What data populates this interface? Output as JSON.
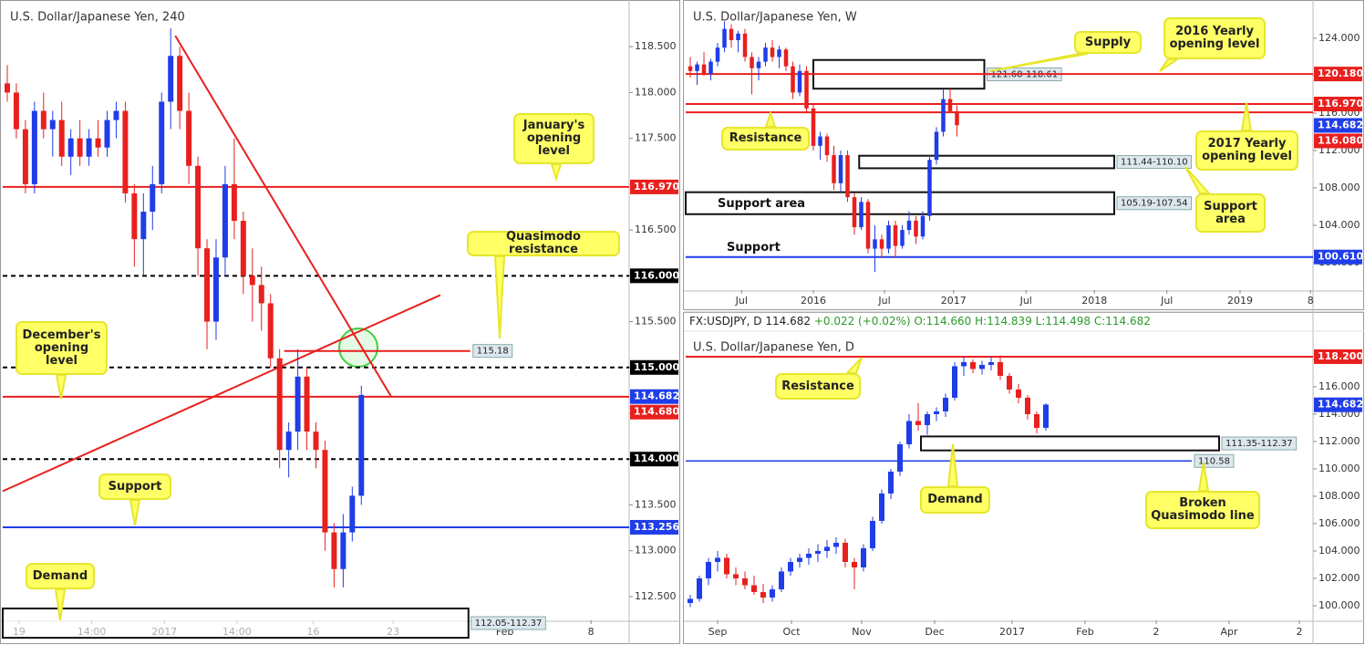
{
  "chart_data": [
    {
      "type": "candlestick",
      "title": "U.S. Dollar/Japanese Yen, 240",
      "up_color": "#1f3de8",
      "down_color": "#e8201e",
      "open": [
        118.1,
        118.0,
        117.6,
        117.0,
        117.8,
        117.6,
        117.7,
        117.3,
        117.5,
        117.3,
        117.5,
        117.4,
        117.7,
        117.8,
        116.9,
        116.4,
        116.7,
        117.0,
        117.9,
        118.4,
        117.8,
        117.2,
        116.3,
        115.5,
        116.2,
        117.0,
        116.6,
        116.0,
        115.9,
        115.7,
        115.1,
        114.1,
        114.3,
        114.9,
        114.3,
        114.1,
        113.2,
        112.8,
        113.2,
        113.6
      ],
      "high": [
        118.3,
        118.1,
        117.7,
        117.9,
        118.0,
        117.8,
        117.9,
        117.6,
        117.7,
        117.6,
        117.7,
        117.8,
        117.9,
        117.9,
        117.0,
        116.9,
        117.2,
        118.0,
        118.7,
        118.5,
        118.0,
        117.3,
        116.4,
        116.4,
        117.2,
        117.5,
        116.7,
        116.3,
        116.1,
        115.8,
        115.2,
        114.4,
        115.2,
        115.0,
        114.4,
        114.2,
        113.3,
        113.4,
        113.7,
        114.8
      ],
      "low": [
        117.9,
        117.5,
        116.9,
        116.9,
        117.5,
        117.3,
        117.2,
        117.1,
        117.2,
        117.2,
        117.3,
        117.3,
        117.5,
        116.8,
        116.1,
        116.0,
        116.5,
        116.9,
        117.6,
        117.6,
        117.0,
        116.0,
        115.2,
        115.3,
        116.0,
        116.4,
        115.8,
        115.5,
        115.4,
        115.0,
        113.9,
        113.8,
        114.1,
        114.1,
        113.9,
        113.0,
        112.6,
        112.6,
        113.1,
        113.5
      ],
      "close": [
        118.0,
        117.6,
        117.0,
        117.8,
        117.6,
        117.7,
        117.3,
        117.5,
        117.3,
        117.5,
        117.4,
        117.7,
        117.8,
        116.9,
        116.4,
        116.7,
        117.0,
        117.9,
        118.4,
        117.8,
        117.2,
        116.3,
        115.5,
        116.2,
        117.0,
        116.6,
        116.0,
        115.9,
        115.7,
        115.1,
        114.1,
        114.3,
        114.9,
        114.3,
        114.1,
        113.2,
        112.8,
        113.2,
        113.6,
        114.7
      ],
      "xlim": [
        -0.5,
        68.5
      ],
      "xticks": [
        {
          "value": 1.3,
          "label": "19"
        },
        {
          "value": 9.3,
          "label": "14:00"
        },
        {
          "value": 17.3,
          "label": "2017"
        },
        {
          "value": 25.3,
          "label": "14:00"
        },
        {
          "value": 33.7,
          "label": "16"
        },
        {
          "value": 42.5,
          "label": "23"
        },
        {
          "value": 54.8,
          "label": "Feb"
        },
        {
          "value": 64.3,
          "label": "8"
        }
      ],
      "ylim": [
        112.24,
        118.98
      ],
      "yticks": [
        {
          "value": 112.5,
          "label": "112.500"
        },
        {
          "value": 113,
          "label": "113.000"
        },
        {
          "value": 113.5,
          "label": "113.500"
        },
        {
          "value": 114,
          "label": "114.000"
        },
        {
          "value": 114.5,
          "label": "114.500"
        },
        {
          "value": 115,
          "label": "115.000"
        },
        {
          "value": 115.5,
          "label": "115.500"
        },
        {
          "value": 116,
          "label": "116.000"
        },
        {
          "value": 116.5,
          "label": "116.500"
        },
        {
          "value": 117,
          "label": "117.000"
        },
        {
          "value": 117.5,
          "label": "117.500"
        },
        {
          "value": 118,
          "label": "118.000"
        },
        {
          "value": 118.5,
          "label": "118.500"
        }
      ],
      "last_price": {
        "value": 114.682,
        "label": "114.682",
        "color": "#1f3de8"
      },
      "levels": [
        {
          "value": 116.97,
          "label": "116.970",
          "color": "#e8201e",
          "style": "solid"
        },
        {
          "value": 116,
          "label": "116.000",
          "color": "#000000",
          "style": "dashed"
        },
        {
          "value": 115,
          "label": "115.000",
          "color": "#000000",
          "style": "dashed"
        },
        {
          "value": 114.68,
          "label": "114.680",
          "color": "#e8201e",
          "style": "solid"
        },
        {
          "value": 114,
          "label": "114.000",
          "color": "#000000",
          "style": "dashed"
        },
        {
          "value": 113.256,
          "label": "113.256",
          "color": "#1f3de8",
          "style": "solid"
        }
      ],
      "segments": [
        {
          "x": [
            30.5,
            51
          ],
          "value": 115.18,
          "color": "#e8201e"
        }
      ],
      "trendlines": [
        {
          "x": [
            18.5,
            42.3
          ],
          "y": [
            118.62,
            114.68
          ],
          "color": "#e8201e"
        },
        {
          "x": [
            -0.5,
            47.7
          ],
          "y": [
            113.65,
            115.79
          ],
          "color": "#e8201e"
        }
      ],
      "zones": [
        {
          "x": [
            -0.5,
            50.8
          ],
          "low": 112.05,
          "high": 112.37,
          "label": "112.05-112.37"
        }
      ],
      "annotations": [
        "January's opening level",
        "Quasimodo resistance",
        "December's opening level",
        "Support",
        "Demand"
      ],
      "labels": []
    },
    {
      "type": "candlestick",
      "title": "U.S. Dollar/Japanese Yen, W",
      "up_color": "#1f3de8",
      "down_color": "#e8201e",
      "open": [
        121.0,
        120.5,
        121.2,
        120.2,
        121.5,
        123.0,
        125.0,
        123.8,
        124.5,
        122.0,
        120.8,
        121.5,
        123.0,
        122.0,
        122.8,
        121.0,
        118.2,
        120.5,
        116.5,
        112.5,
        113.5,
        111.5,
        108.5,
        111.5,
        107.0,
        103.8,
        106.5,
        101.5,
        102.5,
        101.5,
        104.0,
        101.8,
        103.5,
        104.5,
        102.8,
        105.0,
        111.0,
        114.0,
        117.5,
        116.2
      ],
      "high": [
        122.0,
        121.5,
        122.5,
        121.8,
        123.5,
        125.8,
        125.5,
        124.8,
        125.0,
        122.5,
        122.0,
        123.5,
        123.8,
        123.2,
        123.0,
        121.5,
        121.2,
        121.0,
        117.0,
        114.0,
        113.8,
        112.5,
        112.0,
        112.0,
        107.5,
        107.0,
        106.8,
        104.0,
        103.0,
        104.5,
        104.5,
        104.0,
        105.5,
        105.0,
        105.5,
        111.5,
        114.5,
        118.5,
        118.6,
        116.8
      ],
      "low": [
        119.8,
        119.0,
        120.0,
        119.5,
        121.0,
        122.5,
        123.0,
        122.5,
        121.5,
        118.0,
        119.5,
        121.0,
        121.5,
        120.8,
        120.5,
        117.5,
        117.8,
        116.0,
        112.0,
        111.0,
        110.8,
        107.8,
        107.5,
        106.5,
        103.0,
        103.5,
        101.0,
        99.0,
        100.5,
        101.0,
        100.5,
        101.5,
        103.0,
        102.0,
        102.5,
        104.5,
        110.5,
        113.5,
        116.0,
        113.5
      ],
      "close": [
        120.5,
        121.2,
        120.2,
        121.5,
        123.0,
        125.0,
        123.8,
        124.5,
        122.0,
        120.8,
        121.5,
        123.0,
        122.0,
        122.8,
        121.0,
        118.2,
        120.5,
        116.5,
        112.5,
        113.5,
        111.5,
        108.5,
        111.5,
        107.0,
        103.8,
        106.5,
        101.5,
        102.5,
        101.5,
        104.0,
        101.8,
        103.5,
        104.5,
        102.8,
        105.0,
        111.0,
        114.0,
        117.5,
        116.2,
        114.7
      ],
      "xlim": [
        -0.67,
        91.07
      ],
      "xticks": [
        {
          "value": 7.5,
          "label": "Jul"
        },
        {
          "value": 18,
          "label": "2016"
        },
        {
          "value": 28.4,
          "label": "Jul"
        },
        {
          "value": 38.5,
          "label": "2017"
        },
        {
          "value": 49.1,
          "label": "Jul"
        },
        {
          "value": 59.1,
          "label": "2018"
        },
        {
          "value": 69.7,
          "label": "Jul"
        },
        {
          "value": 80.4,
          "label": "2019"
        },
        {
          "value": 90.7,
          "label": "8"
        }
      ],
      "ylim": [
        97.07,
        127.8
      ],
      "yticks": [
        {
          "value": 100,
          "label": "100.000"
        },
        {
          "value": 104,
          "label": "104.000"
        },
        {
          "value": 108,
          "label": "108.000"
        },
        {
          "value": 112,
          "label": "112.000"
        },
        {
          "value": 116,
          "label": "116.000"
        },
        {
          "value": 120,
          "label": "120.000"
        },
        {
          "value": 124,
          "label": "124.000"
        }
      ],
      "last_price": {
        "value": 114.682,
        "label": "114.682",
        "color": "#1f3de8"
      },
      "levels": [
        {
          "value": 120.18,
          "label": "120.180",
          "color": "#e8201e",
          "style": "solid"
        },
        {
          "value": 116.97,
          "label": "116.970",
          "color": "#e8201e",
          "style": "solid"
        },
        {
          "value": 116.08,
          "label": "116.080",
          "color": "#e8201e",
          "style": "solid"
        },
        {
          "value": 100.61,
          "label": "100.610",
          "color": "#1f3de8",
          "style": "solid"
        }
      ],
      "segments": [],
      "trendlines": [],
      "zones": [
        {
          "x": [
            18,
            43
          ],
          "low": 118.61,
          "high": 121.68,
          "label": "121.68-118.61"
        },
        {
          "x": [
            24.7,
            62
          ],
          "low": 110.1,
          "high": 111.44,
          "label": "111.44-110.10"
        },
        {
          "x": [
            -0.67,
            62
          ],
          "low": 105.19,
          "high": 107.54,
          "label": "105.19-107.54"
        }
      ],
      "annotations": [
        "Supply",
        "2016 Yearly opening level",
        "Resistance",
        "2017 Yearly opening level",
        "Support area"
      ],
      "labels": [
        "Support area",
        "Support"
      ]
    },
    {
      "type": "candlestick",
      "title": "U.S. Dollar/Japanese Yen, D",
      "up_color": "#1f3de8",
      "down_color": "#e8201e",
      "header": [
        "FX:USDJPY, D",
        "114.682",
        "+0.022 (+0.02%)",
        "O:114.660",
        "H:114.839",
        "L:114.498",
        "C:114.682"
      ],
      "open": [
        100.2,
        100.5,
        102.0,
        103.2,
        103.5,
        102.3,
        102.0,
        101.5,
        101.0,
        100.6,
        101.2,
        102.5,
        103.2,
        103.5,
        103.8,
        104.0,
        104.3,
        104.6,
        103.2,
        102.8,
        104.2,
        106.2,
        108.2,
        109.8,
        111.8,
        113.5,
        113.2,
        114.0,
        114.2,
        115.2,
        117.5,
        117.8,
        117.3,
        117.6,
        117.8,
        116.8,
        115.8,
        115.2,
        114.0,
        113.0
      ],
      "high": [
        100.8,
        102.2,
        103.5,
        104.0,
        103.8,
        102.8,
        102.5,
        102.2,
        101.6,
        101.5,
        102.8,
        103.5,
        103.8,
        104.2,
        104.5,
        104.8,
        105.0,
        104.9,
        103.5,
        104.5,
        106.5,
        108.5,
        110.0,
        112.0,
        114.0,
        114.8,
        114.2,
        114.5,
        115.5,
        117.8,
        118.2,
        118.0,
        117.9,
        118.2,
        118.3,
        117.0,
        116.2,
        115.4,
        114.2,
        114.8
      ],
      "low": [
        99.9,
        100.3,
        101.5,
        102.5,
        102.0,
        101.5,
        101.2,
        100.8,
        100.2,
        100.3,
        101.0,
        102.2,
        102.8,
        103.0,
        103.2,
        103.5,
        103.8,
        102.8,
        101.2,
        102.5,
        104.0,
        106.0,
        107.8,
        109.5,
        111.5,
        112.8,
        112.5,
        113.5,
        113.8,
        115.0,
        116.8,
        117.0,
        116.9,
        117.2,
        116.5,
        115.5,
        114.8,
        113.6,
        112.6,
        112.8
      ],
      "close": [
        100.5,
        102.0,
        103.2,
        103.5,
        102.3,
        102.0,
        101.5,
        101.0,
        100.6,
        101.2,
        102.5,
        103.2,
        103.5,
        103.8,
        104.0,
        104.3,
        104.6,
        103.2,
        102.8,
        104.2,
        106.2,
        108.2,
        109.8,
        111.8,
        113.5,
        113.2,
        114.0,
        114.2,
        115.2,
        117.5,
        117.8,
        117.3,
        117.6,
        117.8,
        116.8,
        115.8,
        115.2,
        114.0,
        113.0,
        114.7
      ],
      "xlim": [
        -0.5,
        68.3
      ],
      "xticks": [
        {
          "value": 3,
          "label": "Sep"
        },
        {
          "value": 11.1,
          "label": "Oct"
        },
        {
          "value": 18.8,
          "label": "Nov"
        },
        {
          "value": 26.8,
          "label": "Dec"
        },
        {
          "value": 35.3,
          "label": "2017"
        },
        {
          "value": 43.3,
          "label": "Feb"
        },
        {
          "value": 51.1,
          "label": "2"
        },
        {
          "value": 59.1,
          "label": "Apr"
        },
        {
          "value": 66.8,
          "label": "2"
        }
      ],
      "ylim": [
        98.93,
        119.93
      ],
      "yticks": [
        {
          "value": 100,
          "label": "100.000"
        },
        {
          "value": 102,
          "label": "102.000"
        },
        {
          "value": 104,
          "label": "104.000"
        },
        {
          "value": 106,
          "label": "106.000"
        },
        {
          "value": 108,
          "label": "108.000"
        },
        {
          "value": 110,
          "label": "110.000"
        },
        {
          "value": 112,
          "label": "112.000"
        },
        {
          "value": 114,
          "label": "114.000"
        },
        {
          "value": 116,
          "label": "116.000"
        },
        {
          "value": 118,
          "label": "118.000"
        }
      ],
      "last_price": {
        "value": 114.682,
        "label": "114.682",
        "color": "#1f3de8"
      },
      "levels": [
        {
          "value": 118.2,
          "label": "118.200",
          "color": "#e8201e",
          "style": "solid"
        }
      ],
      "segments": [
        {
          "x": [
            -0.5,
            55
          ],
          "value": 110.58,
          "color": "#1f3de8"
        }
      ],
      "trendlines": [],
      "zones": [
        {
          "x": [
            25.3,
            58
          ],
          "low": 111.35,
          "high": 112.37,
          "label": "111.35-112.37"
        }
      ],
      "annotations": [
        "Resistance",
        "Demand",
        "Broken Quasimodo line"
      ],
      "labels": []
    }
  ]
}
